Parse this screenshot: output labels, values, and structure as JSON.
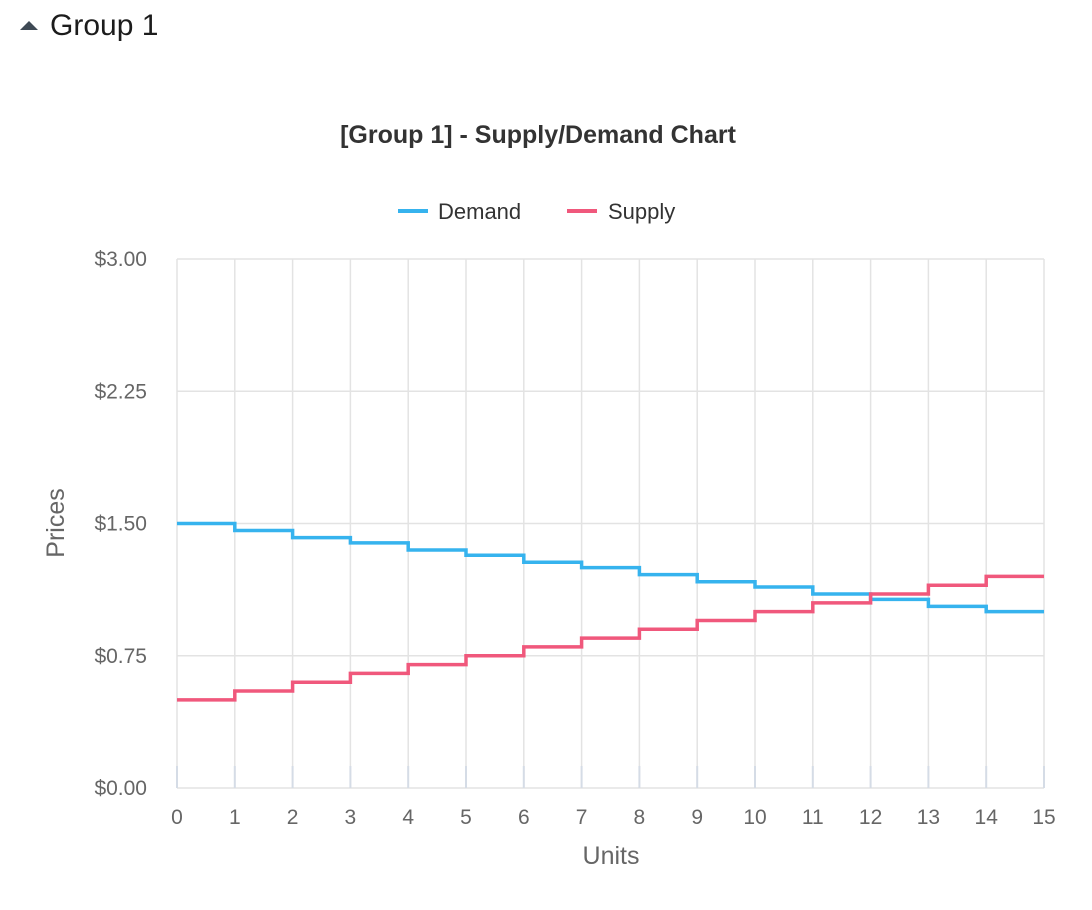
{
  "group": {
    "title": "Group 1"
  },
  "chart_data": {
    "type": "line",
    "step": true,
    "title": "[Group 1] - Supply/Demand Chart",
    "xlabel": "Units",
    "ylabel": "Prices",
    "xlim": [
      0,
      15
    ],
    "ylim": [
      0,
      3
    ],
    "x_ticks": [
      "0",
      "1",
      "2",
      "3",
      "4",
      "5",
      "6",
      "7",
      "8",
      "9",
      "10",
      "11",
      "12",
      "13",
      "14",
      "15"
    ],
    "y_ticks": [
      {
        "value": 0,
        "label": "$0.00"
      },
      {
        "value": 0.75,
        "label": "$0.75"
      },
      {
        "value": 1.5,
        "label": "$1.50"
      },
      {
        "value": 2.25,
        "label": "$2.25"
      },
      {
        "value": 3,
        "label": "$3.00"
      }
    ],
    "grid": true,
    "legend_position": "top-center",
    "series": [
      {
        "name": "Demand",
        "color": "#36b3ee",
        "values": [
          1.5,
          1.46,
          1.42,
          1.39,
          1.35,
          1.32,
          1.28,
          1.25,
          1.21,
          1.17,
          1.14,
          1.1,
          1.07,
          1.03,
          1.0
        ]
      },
      {
        "name": "Supply",
        "color": "#f0587c",
        "values": [
          0.5,
          0.55,
          0.6,
          0.65,
          0.7,
          0.75,
          0.8,
          0.85,
          0.9,
          0.95,
          1.0,
          1.05,
          1.1,
          1.15,
          1.2
        ]
      }
    ]
  }
}
